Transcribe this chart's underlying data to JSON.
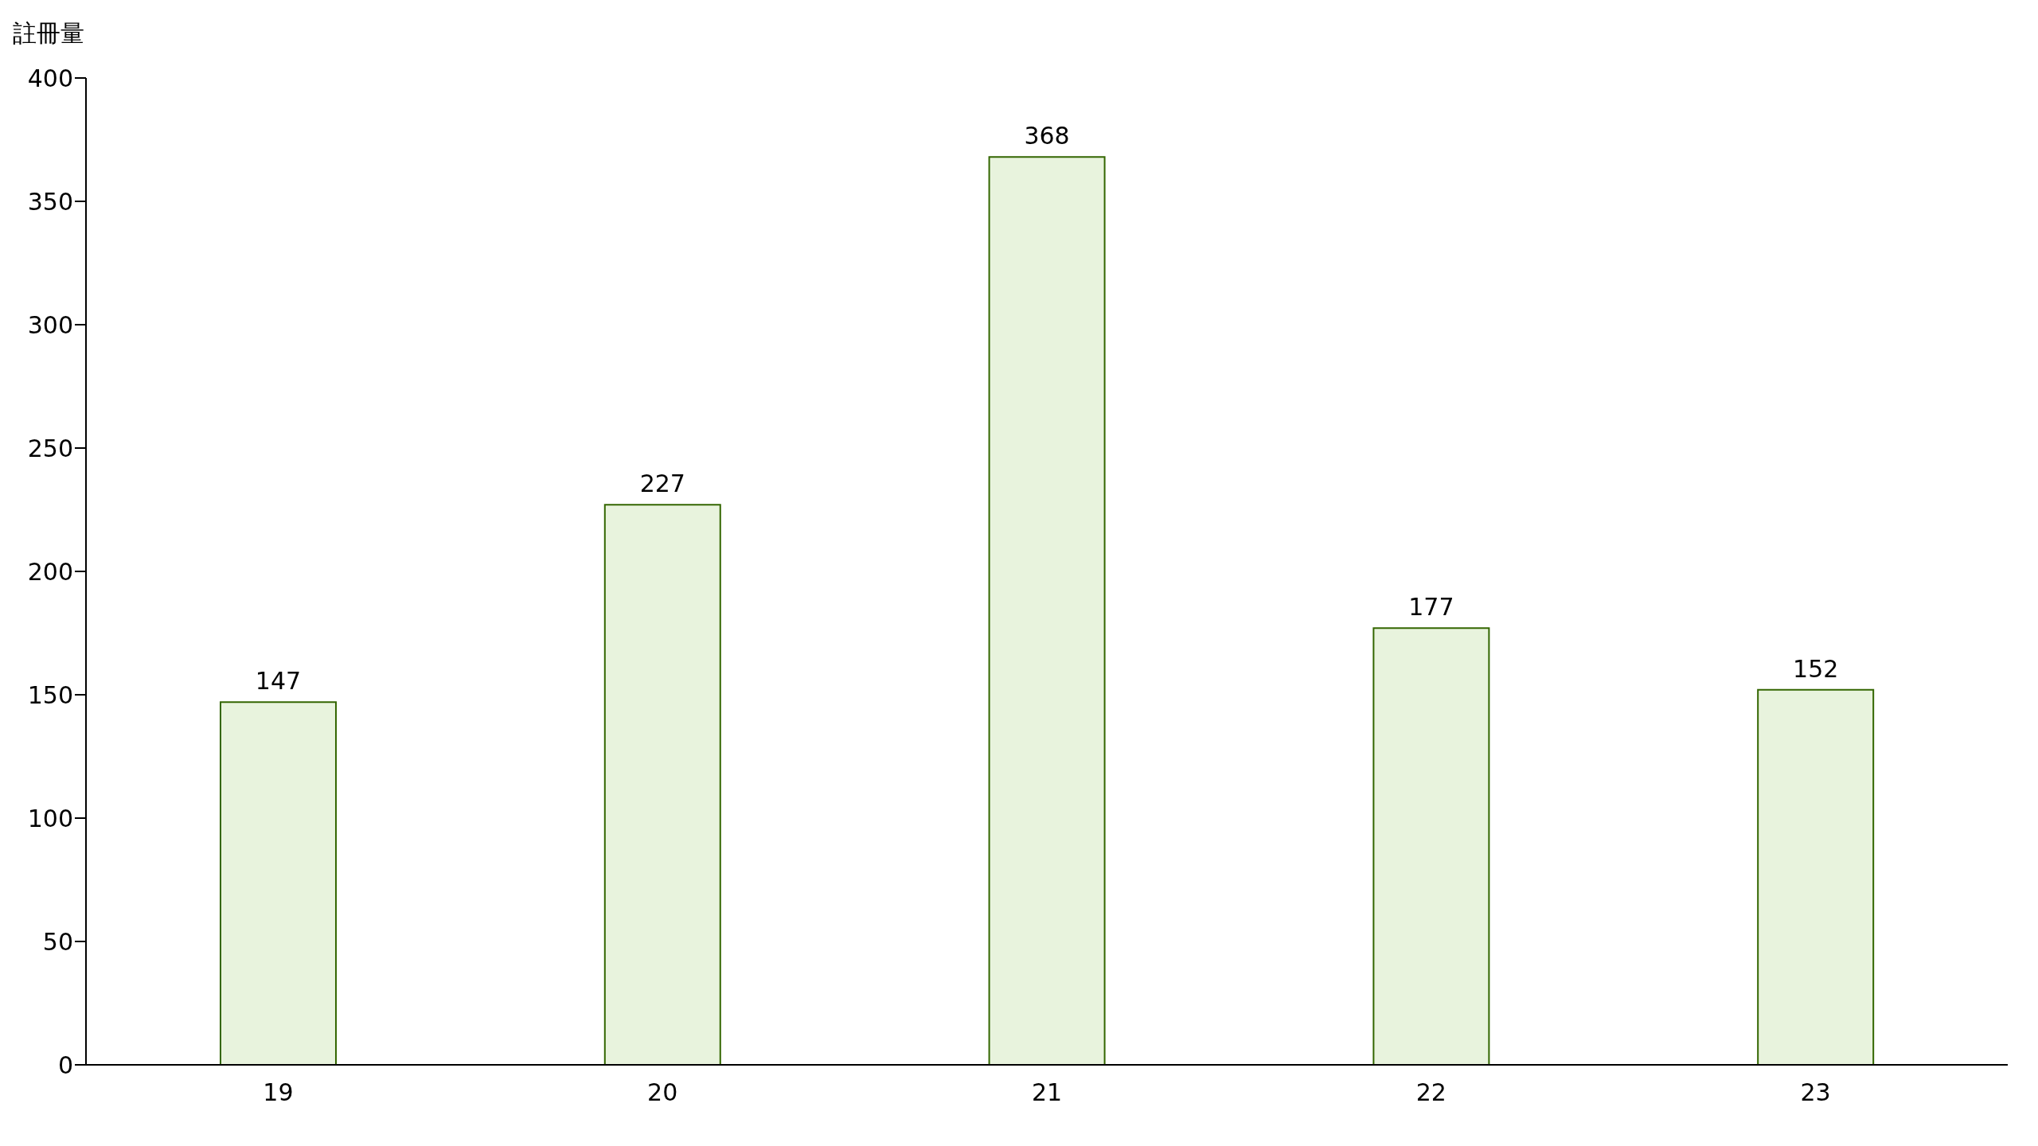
{
  "chart_data": {
    "type": "bar",
    "ylabel": "註冊量",
    "categories": [
      "19",
      "20",
      "21",
      "22",
      "23"
    ],
    "values": [
      147,
      227,
      368,
      177,
      152
    ],
    "color": "#336600",
    "ylim": [
      0,
      400
    ],
    "yticks": [
      0,
      50,
      100,
      150,
      200,
      250,
      300,
      350,
      400
    ],
    "grid": false,
    "data_labels": true
  }
}
